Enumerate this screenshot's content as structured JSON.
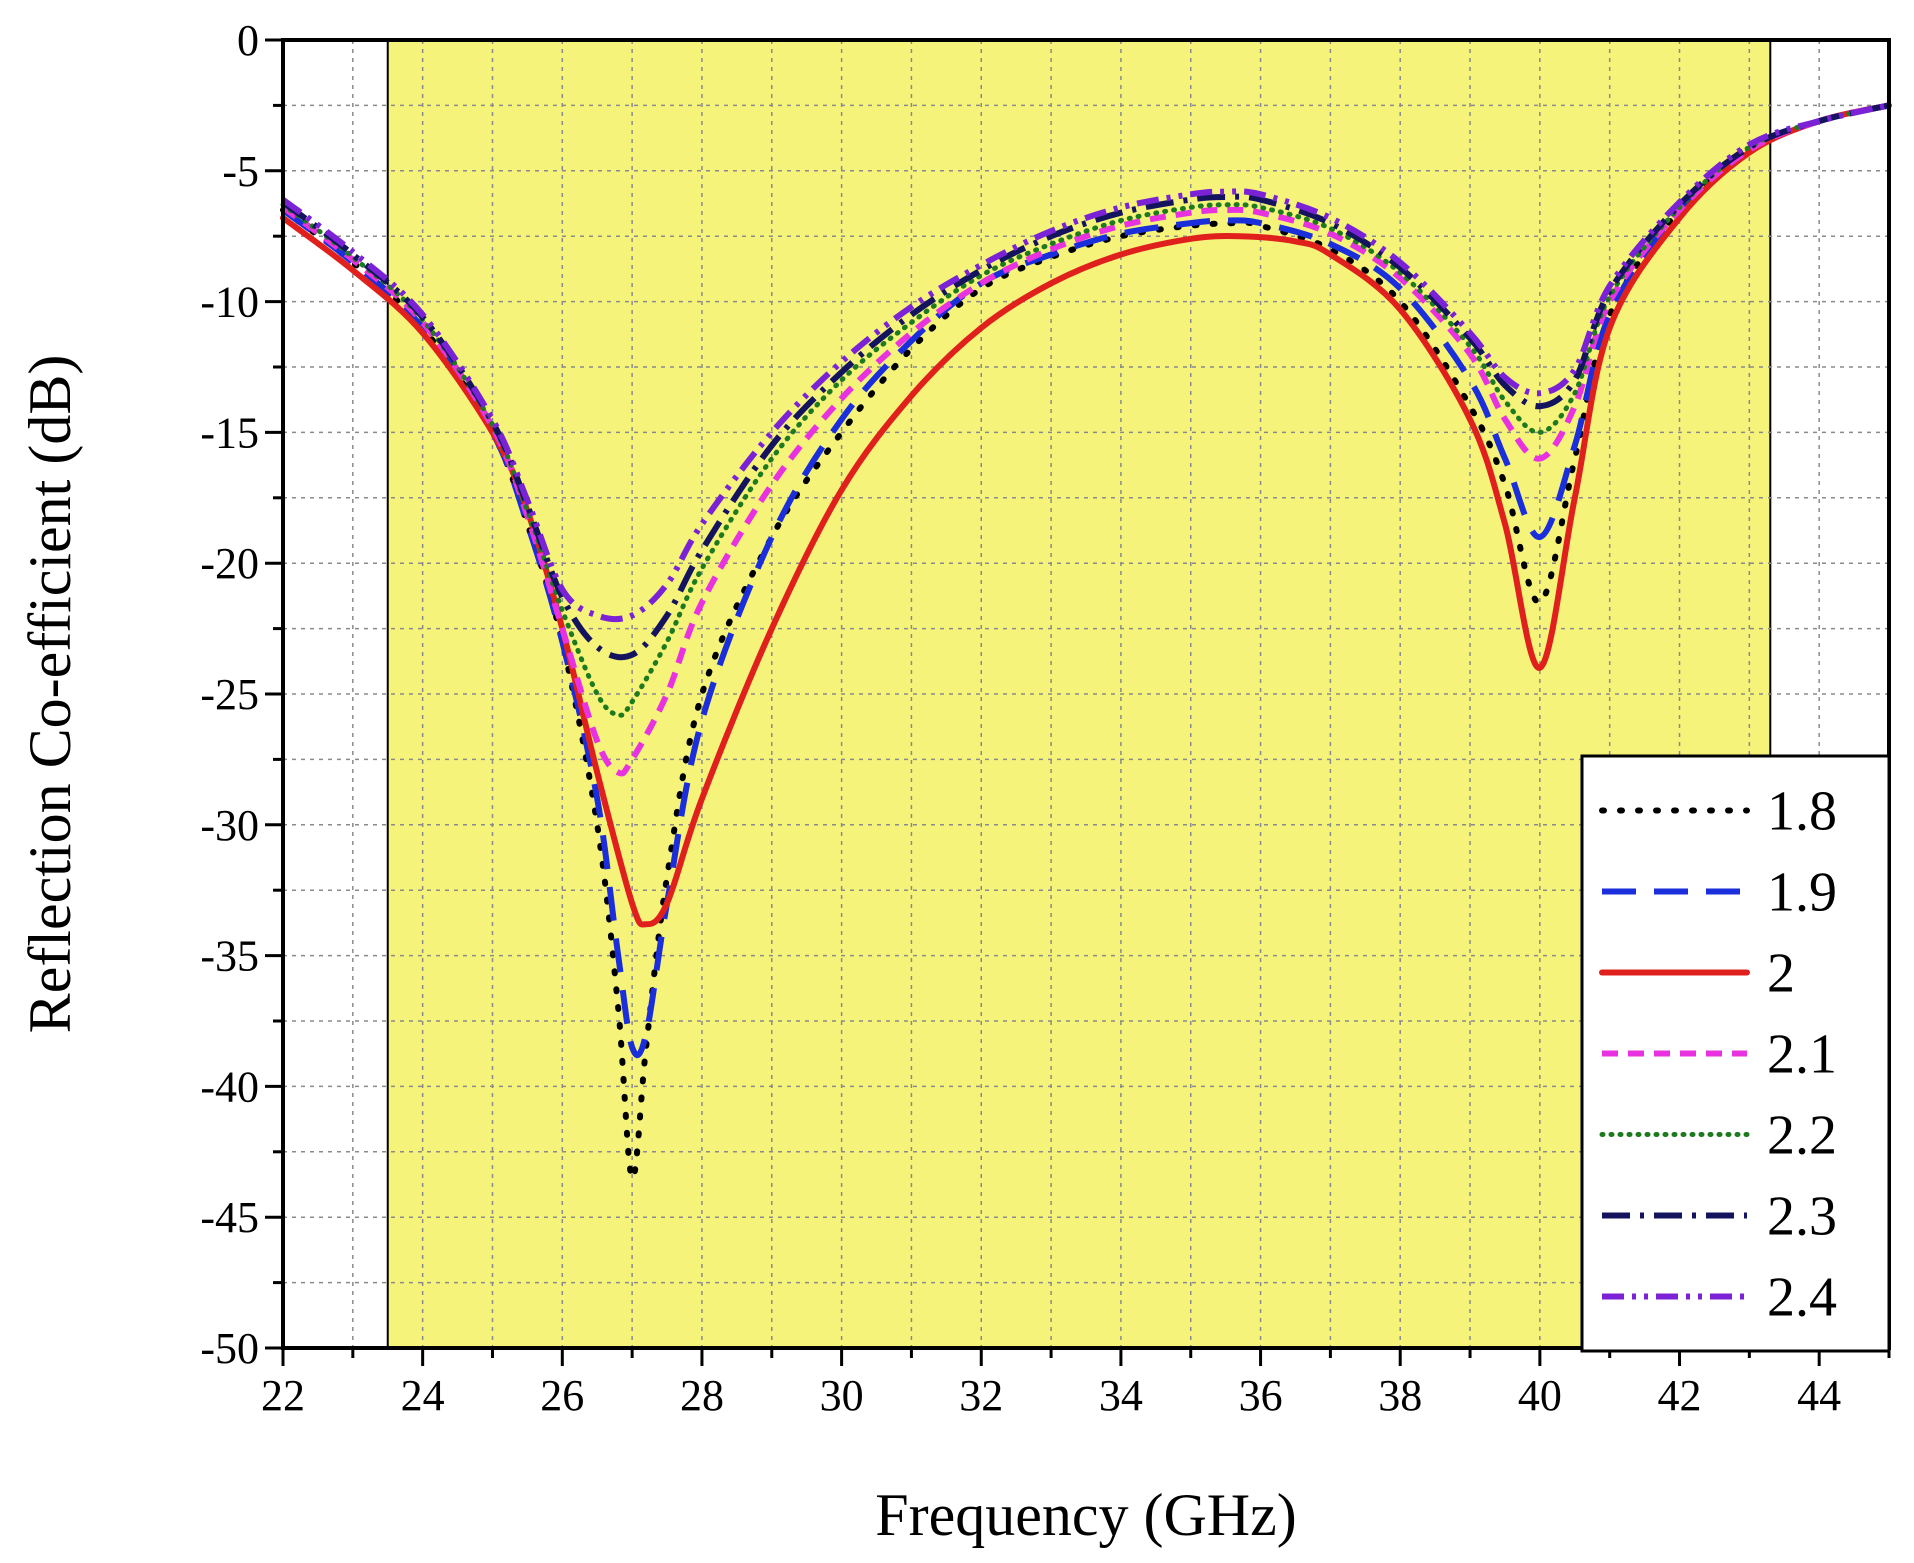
{
  "chart_data": {
    "type": "line",
    "title": "",
    "xlabel": "Frequency (GHz)",
    "ylabel": "Reflection Co-efficient (dB)",
    "xlim": [
      22,
      45
    ],
    "ylim": [
      -50,
      0
    ],
    "xticks": [
      22,
      24,
      26,
      28,
      30,
      32,
      34,
      36,
      38,
      40,
      42,
      44
    ],
    "yticks": [
      0,
      -5,
      -10,
      -15,
      -20,
      -25,
      -30,
      -35,
      -40,
      -45,
      -50
    ],
    "grid": true,
    "legend_position": "bottom-right",
    "highlight_band": {
      "x_start": 23.5,
      "x_end": 43.3,
      "color": "#f5f37a"
    },
    "series": [
      {
        "name": "1.8",
        "color": "#000000",
        "style": "dotted",
        "x": [
          22,
          23,
          24,
          25,
          25.5,
          26,
          26.5,
          26.8,
          27,
          27.2,
          27.5,
          28,
          29,
          30,
          31,
          32,
          33,
          34,
          35,
          35.7,
          36,
          37,
          38,
          39,
          39.5,
          40,
          40.5,
          41,
          42,
          43,
          44,
          45
        ],
        "y": [
          -6.5,
          -8.5,
          -11,
          -15,
          -18.5,
          -23,
          -30,
          -37,
          -43.5,
          -38.5,
          -32,
          -25,
          -19,
          -15,
          -11.8,
          -9.5,
          -8.3,
          -7.5,
          -7.1,
          -7,
          -7.1,
          -8,
          -10,
          -14,
          -17,
          -21.5,
          -16,
          -10.5,
          -6.5,
          -4.2,
          -3.1,
          -2.5
        ]
      },
      {
        "name": "1.9",
        "color": "#1a2edb",
        "style": "dashed",
        "x": [
          22,
          23,
          24,
          25,
          25.5,
          26,
          26.5,
          26.8,
          27,
          27.2,
          27.5,
          28,
          29,
          30,
          31,
          32,
          33,
          34,
          35,
          35.5,
          36,
          37,
          38,
          39,
          39.5,
          40,
          40.5,
          41,
          42,
          43,
          44,
          45
        ],
        "y": [
          -6.5,
          -8.5,
          -11,
          -15,
          -18.5,
          -23,
          -29,
          -35,
          -38.5,
          -38,
          -33,
          -26,
          -19,
          -14.5,
          -11.5,
          -9.3,
          -8.2,
          -7.4,
          -7,
          -6.9,
          -7,
          -7.8,
          -9.5,
          -13,
          -16,
          -19,
          -15.5,
          -10.5,
          -6.5,
          -4.2,
          -3.1,
          -2.5
        ]
      },
      {
        "name": "2",
        "color": "#e0201d",
        "style": "solid",
        "x": [
          22,
          23,
          24,
          25,
          25.5,
          26,
          26.5,
          27,
          27.2,
          27.5,
          28,
          29,
          30,
          31,
          32,
          33,
          34,
          35,
          35.7,
          36.5,
          37,
          38,
          39,
          39.5,
          40,
          40.5,
          41,
          42,
          43,
          44,
          45
        ],
        "y": [
          -6.8,
          -8.8,
          -11.2,
          -15,
          -18,
          -22.5,
          -28,
          -33,
          -33.8,
          -33,
          -29,
          -22.5,
          -17.2,
          -13.6,
          -11,
          -9.3,
          -8.2,
          -7.6,
          -7.5,
          -7.7,
          -8.2,
          -10.3,
          -14.5,
          -18.5,
          -24,
          -17.5,
          -11,
          -6.8,
          -4.3,
          -3.1,
          -2.5
        ]
      },
      {
        "name": "2.1",
        "color": "#e832e0",
        "style": "short-dashed",
        "x": [
          22,
          23,
          24,
          25,
          25.5,
          26,
          26.5,
          26.8,
          27,
          27.5,
          28,
          29,
          30,
          31,
          32,
          33,
          34,
          35,
          35.5,
          36,
          37,
          38,
          39,
          39.5,
          40,
          40.5,
          41,
          42,
          43,
          44,
          45
        ],
        "y": [
          -6.4,
          -8.4,
          -10.8,
          -14.8,
          -18.2,
          -22.5,
          -26.8,
          -28,
          -27.5,
          -25,
          -21.5,
          -17,
          -13.7,
          -11.2,
          -9.3,
          -8,
          -7.1,
          -6.6,
          -6.5,
          -6.6,
          -7.4,
          -9.1,
          -12,
          -14.5,
          -16,
          -14,
          -10,
          -6.5,
          -4.2,
          -3.1,
          -2.5
        ]
      },
      {
        "name": "2.2",
        "color": "#1e7a1e",
        "style": "fine-dotted",
        "x": [
          22,
          23,
          24,
          25,
          25.5,
          26,
          26.5,
          26.8,
          27,
          27.5,
          28,
          29,
          30,
          31,
          32,
          33,
          34,
          35,
          35.5,
          36,
          37,
          38,
          39,
          39.5,
          40,
          40.5,
          41,
          42,
          43,
          44,
          45
        ],
        "y": [
          -6.3,
          -8.3,
          -10.7,
          -14.7,
          -18,
          -21.8,
          -25,
          -25.8,
          -25.3,
          -23,
          -20.2,
          -16,
          -13,
          -10.8,
          -9,
          -7.8,
          -6.9,
          -6.4,
          -6.3,
          -6.4,
          -7.2,
          -8.9,
          -11.7,
          -13.8,
          -15,
          -13.5,
          -9.8,
          -6.4,
          -4.1,
          -3.1,
          -2.5
        ]
      },
      {
        "name": "2.3",
        "color": "#14145e",
        "style": "dash-dot",
        "x": [
          22,
          23,
          24,
          25,
          25.5,
          26,
          26.5,
          27,
          27.5,
          28,
          29,
          30,
          31,
          32,
          33,
          34,
          35,
          35.5,
          36,
          37,
          38,
          39,
          39.5,
          40,
          40.5,
          41,
          42,
          43,
          44,
          45
        ],
        "y": [
          -6.2,
          -8.2,
          -10.6,
          -14.6,
          -17.8,
          -21.3,
          -23.2,
          -23.5,
          -22,
          -19.5,
          -15.5,
          -12.7,
          -10.5,
          -8.8,
          -7.5,
          -6.6,
          -6.1,
          -6,
          -6.1,
          -7,
          -8.7,
          -11.4,
          -13.2,
          -14,
          -13,
          -9.6,
          -6.3,
          -4.1,
          -3.1,
          -2.5
        ]
      },
      {
        "name": "2.4",
        "color": "#7b22d6",
        "style": "dash-dot-dot",
        "x": [
          22,
          23,
          24,
          25,
          25.5,
          26,
          26.5,
          27,
          27.5,
          28,
          29,
          30,
          31,
          32,
          33,
          34,
          35,
          35.5,
          36,
          37,
          38,
          39,
          39.5,
          40,
          40.5,
          41,
          42,
          43,
          44,
          45
        ],
        "y": [
          -6.1,
          -8.1,
          -10.5,
          -14.5,
          -17.6,
          -21,
          -22,
          -22,
          -20.8,
          -18.5,
          -15,
          -12.3,
          -10.2,
          -8.6,
          -7.3,
          -6.4,
          -5.9,
          -5.8,
          -5.9,
          -6.8,
          -8.5,
          -11.2,
          -12.9,
          -13.5,
          -12.6,
          -9.4,
          -6.2,
          -4,
          -3.1,
          -2.5
        ]
      }
    ]
  }
}
